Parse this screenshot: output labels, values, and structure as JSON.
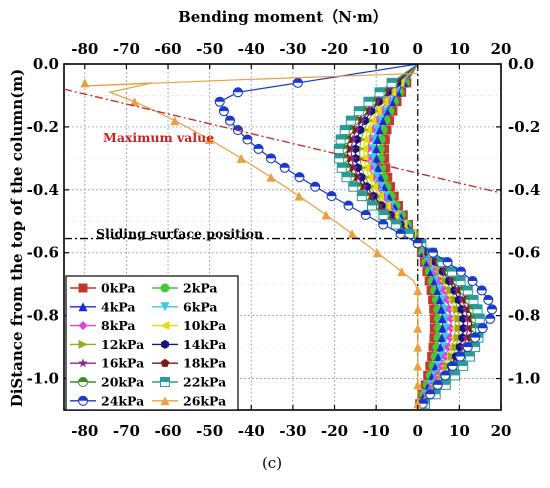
{
  "chart_data": {
    "type": "line",
    "title": "Bending moment（N·m）",
    "xlabel": "Bending moment（N·m）",
    "ylabel": "DiStance from the top of the column(m)",
    "xlim": [
      -85,
      20
    ],
    "ylim": [
      -1.1,
      0.0
    ],
    "x_ticks": [
      -80,
      -70,
      -60,
      -50,
      -40,
      -30,
      -20,
      -10,
      0,
      10,
      20
    ],
    "y_ticks": [
      0.0,
      -0.2,
      -0.4,
      -0.6,
      -0.8,
      -1.0
    ],
    "x_tick_labels": [
      "-80",
      "-70",
      "-60",
      "-50",
      "-40",
      "-30",
      "-20",
      "-10",
      "0",
      "10",
      "20"
    ],
    "y_tick_labels": [
      "0.0",
      "-0.2",
      "-0.4",
      "-0.6",
      "-0.8",
      "-1.0"
    ],
    "grid": true,
    "legend_position": "bottom-left",
    "caption": "(c)",
    "annotations": [
      {
        "text": "Maximum value",
        "color": "#cc2222",
        "line": [
          [
            -85,
            -0.08
          ],
          [
            20,
            -0.41
          ]
        ]
      },
      {
        "text": "Sliding surface position",
        "color": "#000000",
        "line": [
          [
            -85,
            -0.555
          ],
          [
            20,
            -0.555
          ]
        ]
      }
    ],
    "y_values": [
      -0.06,
      -0.09,
      -0.12,
      -0.15,
      -0.18,
      -0.21,
      -0.24,
      -0.27,
      -0.3,
      -0.33,
      -0.36,
      -0.39,
      -0.42,
      -0.45,
      -0.48,
      -0.51,
      -0.54,
      -0.57,
      -0.6,
      -0.63,
      -0.66,
      -0.69,
      -0.72,
      -0.75,
      -0.78,
      -0.81,
      -0.84,
      -0.87,
      -0.9,
      -0.93,
      -0.96,
      -0.99,
      -1.02,
      -1.05,
      -1.08
    ],
    "series": [
      {
        "name": "0kPa",
        "color": "#c0392b",
        "marker": "square",
        "peak_neg": -8,
        "peak_pos": 4
      },
      {
        "name": "2kPa",
        "color": "#44c833",
        "marker": "circle",
        "peak_neg": -9,
        "peak_pos": 5
      },
      {
        "name": "4kPa",
        "color": "#1a2bd4",
        "marker": "triangle-up",
        "peak_neg": -10,
        "peak_pos": 6
      },
      {
        "name": "6kPa",
        "color": "#3cc8e6",
        "marker": "triangle-down",
        "peak_neg": -11,
        "peak_pos": 7
      },
      {
        "name": "8kPa",
        "color": "#e040e0",
        "marker": "diamond",
        "peak_neg": -12,
        "peak_pos": 8
      },
      {
        "name": "10kPa",
        "color": "#e0e000",
        "marker": "triangle-left",
        "peak_neg": -13,
        "peak_pos": 9
      },
      {
        "name": "12kPa",
        "color": "#9aa81a",
        "marker": "triangle-right",
        "peak_neg": -14,
        "peak_pos": 10
      },
      {
        "name": "14kPa",
        "color": "#14147a",
        "marker": "hexagon",
        "peak_neg": -15,
        "peak_pos": 11
      },
      {
        "name": "16kPa",
        "color": "#8a2a8a",
        "marker": "star",
        "peak_neg": -16,
        "peak_pos": 12
      },
      {
        "name": "18kPa",
        "color": "#7a1a1a",
        "marker": "pentagon",
        "peak_neg": -17,
        "peak_pos": 13
      },
      {
        "name": "20kPa",
        "color": "#3a8a2a",
        "marker": "circle-half",
        "peak_neg": -18,
        "peak_pos": 14
      },
      {
        "name": "22kPa",
        "color": "#2a9a9a",
        "marker": "square-half",
        "peak_neg": -19,
        "peak_pos": 15
      },
      {
        "name": "24kPa",
        "color": "#1a3acd",
        "marker": "circle-half-open",
        "peak_neg": -48,
        "peak_pos": 18
      },
      {
        "name": "26kPa",
        "color": "#e8a040",
        "marker": "triangle-up",
        "peak_neg": -80,
        "peak_pos": 0
      }
    ]
  }
}
